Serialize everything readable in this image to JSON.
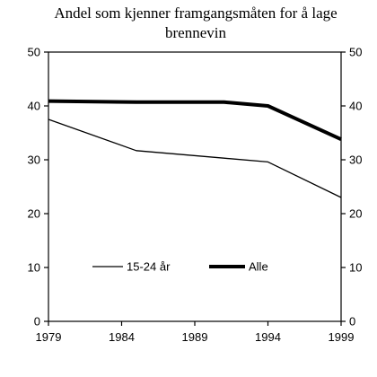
{
  "chart_data": {
    "type": "line",
    "title_lines": [
      "Andel som kjenner framgangsmåten for å lage",
      "brennevin"
    ],
    "xlabel": "",
    "ylabel": "",
    "x": [
      1979,
      1985,
      1991,
      1994,
      1999
    ],
    "x_ticks": [
      1979,
      1984,
      1989,
      1994,
      1999
    ],
    "xlim": [
      1979,
      1999
    ],
    "ylim": [
      0,
      50
    ],
    "y_ticks": [
      0,
      10,
      20,
      30,
      40,
      50
    ],
    "y_ticks_right": true,
    "grid": false,
    "legend_position": "inside-bottom",
    "series": [
      {
        "name": "15-24 år",
        "values": [
          37.5,
          31.7,
          30.3,
          29.6,
          23.0
        ],
        "color": "#000000",
        "style": "thin"
      },
      {
        "name": "Alle",
        "values": [
          40.9,
          40.7,
          40.7,
          40.0,
          33.8
        ],
        "color": "#000000",
        "style": "thick"
      }
    ]
  }
}
